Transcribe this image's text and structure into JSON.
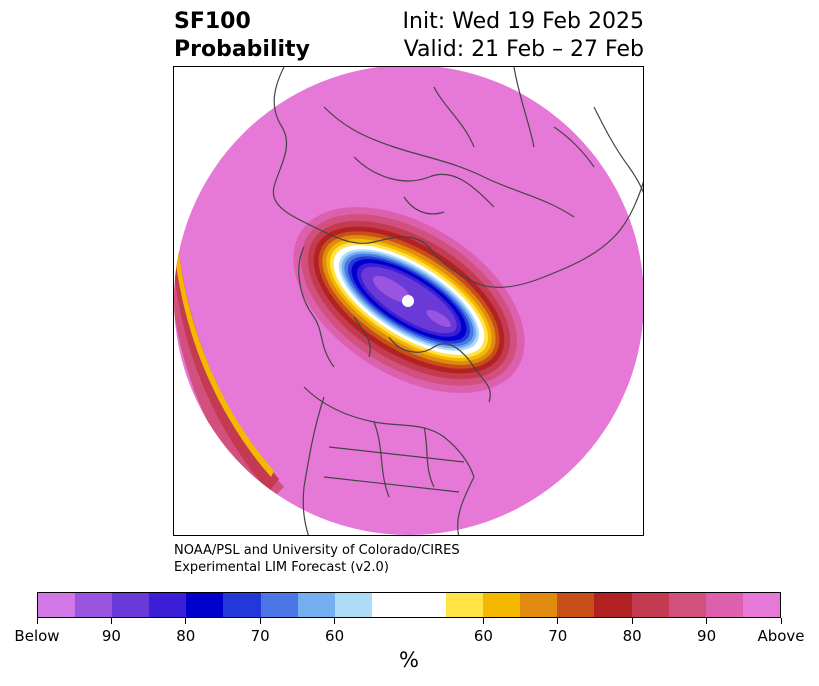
{
  "title": {
    "left_line1": "SF100",
    "left_line2": "Probability",
    "right_line1": "Init: Wed 19 Feb 2025",
    "right_line2": "Valid: 21 Feb – 27 Feb"
  },
  "credit": {
    "line1": "NOAA/PSL and University of Colorado/CIRES",
    "line2": "Experimental LIM Forecast (v2.0)"
  },
  "colorbar": {
    "below_colors": [
      "#d477e6",
      "#9a55e0",
      "#6a3ad9",
      "#3a1fd6",
      "#0000cd",
      "#2238d8",
      "#4a76e6",
      "#74b0f0",
      "#aedcf8"
    ],
    "neutral_color": "#ffffff",
    "above_colors": [
      "#ffe347",
      "#f5b800",
      "#e08a10",
      "#c85018",
      "#b22222",
      "#c43a50",
      "#d2507e",
      "#dd60ae",
      "#e678d8"
    ],
    "tick_labels": [
      "Below",
      "90",
      "80",
      "70",
      "60",
      "60",
      "70",
      "80",
      "90",
      "Above"
    ],
    "units": "%"
  },
  "map": {
    "projection": "north-polar-stereographic",
    "field_color": "#e678d8",
    "land_outline_color": "#444444"
  }
}
